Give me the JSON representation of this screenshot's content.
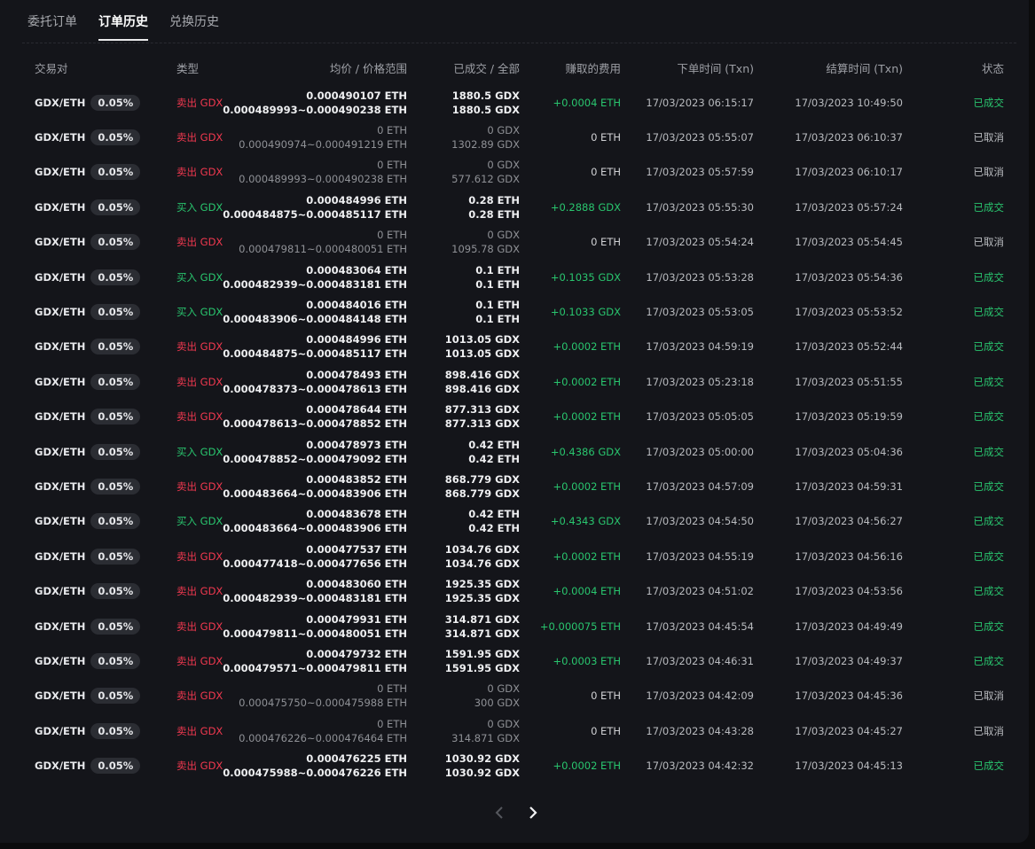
{
  "tabs": [
    {
      "label": "委托订单",
      "active": false
    },
    {
      "label": "订单历史",
      "active": true
    },
    {
      "label": "兑换历史",
      "active": false
    }
  ],
  "headers": {
    "pair": "交易对",
    "type": "类型",
    "price": "均价 / 价格范围",
    "filled": "已成交 / 全部",
    "fee": "赚取的费用",
    "order_time": "下单时间 (Txn)",
    "settle_time": "结算时间 (Txn)",
    "status": "状态"
  },
  "rows": [
    {
      "pair": "GDX/ETH",
      "fee_rate": "0.05%",
      "side": "sell",
      "type": "卖出 GDX",
      "price": "0.000490107 ETH",
      "range": "0.000489993~0.000490238 ETH",
      "filled": "1880.5 GDX",
      "total": "1880.5 GDX",
      "fee": "+0.0004 ETH",
      "order_time": "17/03/2023 06:15:17",
      "settle_time": "17/03/2023 10:49:50",
      "status": "已成交",
      "done": true
    },
    {
      "pair": "GDX/ETH",
      "fee_rate": "0.05%",
      "side": "sell",
      "type": "卖出 GDX",
      "price": "0 ETH",
      "range": "0.000490974~0.000491219 ETH",
      "filled": "0 GDX",
      "total": "1302.89 GDX",
      "fee": "0 ETH",
      "order_time": "17/03/2023 05:55:07",
      "settle_time": "17/03/2023 06:10:37",
      "status": "已取消",
      "done": false
    },
    {
      "pair": "GDX/ETH",
      "fee_rate": "0.05%",
      "side": "sell",
      "type": "卖出 GDX",
      "price": "0 ETH",
      "range": "0.000489993~0.000490238 ETH",
      "filled": "0 GDX",
      "total": "577.612 GDX",
      "fee": "0 ETH",
      "order_time": "17/03/2023 05:57:59",
      "settle_time": "17/03/2023 06:10:17",
      "status": "已取消",
      "done": false
    },
    {
      "pair": "GDX/ETH",
      "fee_rate": "0.05%",
      "side": "buy",
      "type": "买入 GDX",
      "price": "0.000484996 ETH",
      "range": "0.000484875~0.000485117 ETH",
      "filled": "0.28 ETH",
      "total": "0.28 ETH",
      "fee": "+0.2888 GDX",
      "order_time": "17/03/2023 05:55:30",
      "settle_time": "17/03/2023 05:57:24",
      "status": "已成交",
      "done": true
    },
    {
      "pair": "GDX/ETH",
      "fee_rate": "0.05%",
      "side": "sell",
      "type": "卖出 GDX",
      "price": "0 ETH",
      "range": "0.000479811~0.000480051 ETH",
      "filled": "0 GDX",
      "total": "1095.78 GDX",
      "fee": "0 ETH",
      "order_time": "17/03/2023 05:54:24",
      "settle_time": "17/03/2023 05:54:45",
      "status": "已取消",
      "done": false
    },
    {
      "pair": "GDX/ETH",
      "fee_rate": "0.05%",
      "side": "buy",
      "type": "买入 GDX",
      "price": "0.000483064 ETH",
      "range": "0.000482939~0.000483181 ETH",
      "filled": "0.1 ETH",
      "total": "0.1 ETH",
      "fee": "+0.1035 GDX",
      "order_time": "17/03/2023 05:53:28",
      "settle_time": "17/03/2023 05:54:36",
      "status": "已成交",
      "done": true
    },
    {
      "pair": "GDX/ETH",
      "fee_rate": "0.05%",
      "side": "buy",
      "type": "买入 GDX",
      "price": "0.000484016 ETH",
      "range": "0.000483906~0.000484148 ETH",
      "filled": "0.1 ETH",
      "total": "0.1 ETH",
      "fee": "+0.1033 GDX",
      "order_time": "17/03/2023 05:53:05",
      "settle_time": "17/03/2023 05:53:52",
      "status": "已成交",
      "done": true
    },
    {
      "pair": "GDX/ETH",
      "fee_rate": "0.05%",
      "side": "sell",
      "type": "卖出 GDX",
      "price": "0.000484996 ETH",
      "range": "0.000484875~0.000485117 ETH",
      "filled": "1013.05 GDX",
      "total": "1013.05 GDX",
      "fee": "+0.0002 ETH",
      "order_time": "17/03/2023 04:59:19",
      "settle_time": "17/03/2023 05:52:44",
      "status": "已成交",
      "done": true
    },
    {
      "pair": "GDX/ETH",
      "fee_rate": "0.05%",
      "side": "sell",
      "type": "卖出 GDX",
      "price": "0.000478493 ETH",
      "range": "0.000478373~0.000478613 ETH",
      "filled": "898.416 GDX",
      "total": "898.416 GDX",
      "fee": "+0.0002 ETH",
      "order_time": "17/03/2023 05:23:18",
      "settle_time": "17/03/2023 05:51:55",
      "status": "已成交",
      "done": true
    },
    {
      "pair": "GDX/ETH",
      "fee_rate": "0.05%",
      "side": "sell",
      "type": "卖出 GDX",
      "price": "0.000478644 ETH",
      "range": "0.000478613~0.000478852 ETH",
      "filled": "877.313 GDX",
      "total": "877.313 GDX",
      "fee": "+0.0002 ETH",
      "order_time": "17/03/2023 05:05:05",
      "settle_time": "17/03/2023 05:19:59",
      "status": "已成交",
      "done": true
    },
    {
      "pair": "GDX/ETH",
      "fee_rate": "0.05%",
      "side": "buy",
      "type": "买入 GDX",
      "price": "0.000478973 ETH",
      "range": "0.000478852~0.000479092 ETH",
      "filled": "0.42 ETH",
      "total": "0.42 ETH",
      "fee": "+0.4386 GDX",
      "order_time": "17/03/2023 05:00:00",
      "settle_time": "17/03/2023 05:04:36",
      "status": "已成交",
      "done": true
    },
    {
      "pair": "GDX/ETH",
      "fee_rate": "0.05%",
      "side": "sell",
      "type": "卖出 GDX",
      "price": "0.000483852 ETH",
      "range": "0.000483664~0.000483906 ETH",
      "filled": "868.779 GDX",
      "total": "868.779 GDX",
      "fee": "+0.0002 ETH",
      "order_time": "17/03/2023 04:57:09",
      "settle_time": "17/03/2023 04:59:31",
      "status": "已成交",
      "done": true
    },
    {
      "pair": "GDX/ETH",
      "fee_rate": "0.05%",
      "side": "buy",
      "type": "买入 GDX",
      "price": "0.000483678 ETH",
      "range": "0.000483664~0.000483906 ETH",
      "filled": "0.42 ETH",
      "total": "0.42 ETH",
      "fee": "+0.4343 GDX",
      "order_time": "17/03/2023 04:54:50",
      "settle_time": "17/03/2023 04:56:27",
      "status": "已成交",
      "done": true
    },
    {
      "pair": "GDX/ETH",
      "fee_rate": "0.05%",
      "side": "sell",
      "type": "卖出 GDX",
      "price": "0.000477537 ETH",
      "range": "0.000477418~0.000477656 ETH",
      "filled": "1034.76 GDX",
      "total": "1034.76 GDX",
      "fee": "+0.0002 ETH",
      "order_time": "17/03/2023 04:55:19",
      "settle_time": "17/03/2023 04:56:16",
      "status": "已成交",
      "done": true
    },
    {
      "pair": "GDX/ETH",
      "fee_rate": "0.05%",
      "side": "sell",
      "type": "卖出 GDX",
      "price": "0.000483060 ETH",
      "range": "0.000482939~0.000483181 ETH",
      "filled": "1925.35 GDX",
      "total": "1925.35 GDX",
      "fee": "+0.0004 ETH",
      "order_time": "17/03/2023 04:51:02",
      "settle_time": "17/03/2023 04:53:56",
      "status": "已成交",
      "done": true
    },
    {
      "pair": "GDX/ETH",
      "fee_rate": "0.05%",
      "side": "sell",
      "type": "卖出 GDX",
      "price": "0.000479931 ETH",
      "range": "0.000479811~0.000480051 ETH",
      "filled": "314.871 GDX",
      "total": "314.871 GDX",
      "fee": "+0.000075 ETH",
      "order_time": "17/03/2023 04:45:54",
      "settle_time": "17/03/2023 04:49:49",
      "status": "已成交",
      "done": true
    },
    {
      "pair": "GDX/ETH",
      "fee_rate": "0.05%",
      "side": "sell",
      "type": "卖出 GDX",
      "price": "0.000479732 ETH",
      "range": "0.000479571~0.000479811 ETH",
      "filled": "1591.95 GDX",
      "total": "1591.95 GDX",
      "fee": "+0.0003 ETH",
      "order_time": "17/03/2023 04:46:31",
      "settle_time": "17/03/2023 04:49:37",
      "status": "已成交",
      "done": true
    },
    {
      "pair": "GDX/ETH",
      "fee_rate": "0.05%",
      "side": "sell",
      "type": "卖出 GDX",
      "price": "0 ETH",
      "range": "0.000475750~0.000475988 ETH",
      "filled": "0 GDX",
      "total": "300 GDX",
      "fee": "0 ETH",
      "order_time": "17/03/2023 04:42:09",
      "settle_time": "17/03/2023 04:45:36",
      "status": "已取消",
      "done": false
    },
    {
      "pair": "GDX/ETH",
      "fee_rate": "0.05%",
      "side": "sell",
      "type": "卖出 GDX",
      "price": "0 ETH",
      "range": "0.000476226~0.000476464 ETH",
      "filled": "0 GDX",
      "total": "314.871 GDX",
      "fee": "0 ETH",
      "order_time": "17/03/2023 04:43:28",
      "settle_time": "17/03/2023 04:45:27",
      "status": "已取消",
      "done": false
    },
    {
      "pair": "GDX/ETH",
      "fee_rate": "0.05%",
      "side": "sell",
      "type": "卖出 GDX",
      "price": "0.000476225 ETH",
      "range": "0.000475988~0.000476226 ETH",
      "filled": "1030.92 GDX",
      "total": "1030.92 GDX",
      "fee": "+0.0002 ETH",
      "order_time": "17/03/2023 04:42:32",
      "settle_time": "17/03/2023 04:45:13",
      "status": "已成交",
      "done": true
    }
  ],
  "pagination": {
    "prev_icon": "chevron-left-icon",
    "next_icon": "chevron-right-icon"
  },
  "colors": {
    "sell": "#f0384f",
    "buy": "#29c56e",
    "done": "#29c56e",
    "background": "#14151a"
  }
}
